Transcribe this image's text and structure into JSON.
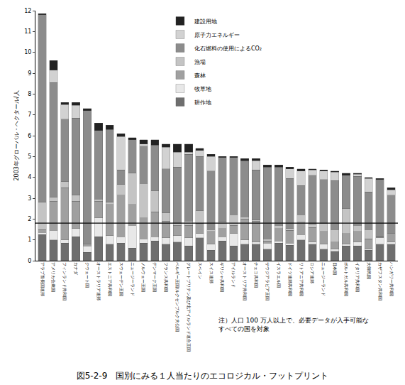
{
  "chart_data": {
    "type": "bar",
    "stacked": true,
    "title": "図5-2-9　国別にみる１人当たりのエコロジカル・フットプリント",
    "y_label": "2003年グローバル・ヘクタール/人",
    "note": [
      "注）人口 100 万人以上で、必要データが入手可能な",
      "すべての国を対象"
    ],
    "reference_line": 1.8,
    "ylim": [
      0,
      12
    ],
    "yticks": [
      0,
      1,
      2,
      3,
      4,
      5,
      6,
      7,
      8,
      9,
      10,
      11,
      12
    ],
    "grid": false,
    "legend": "top",
    "categories": [
      "アラブ首長国連邦",
      "アメリカ合衆国",
      "フィンランド共和国",
      "カナダ",
      "クウェート国",
      "オーストラリア連邦",
      "エストニア共和国",
      "スウェーデン王国",
      "ニュージーランド",
      "ノルウェー王国",
      "デンマーク王国",
      "フランス共和国",
      "ベルギー王国/ルクセンブルク大公国",
      "グレートブリテン及び北アイルランド連合王国",
      "スペイン",
      "スイス連邦",
      "ギリシャ共和国",
      "アイルランド",
      "オーストリア共和国",
      "チェコ共和国",
      "サウジアラビア王国",
      "イスラエル国",
      "ドイツ連邦共和国",
      "リトアニア共和国",
      "ロシア連邦",
      "ニュージーランド",
      "日本国",
      "ポルトガル共和国",
      "イタリア共和国",
      "大韓民国",
      "カザフスタン共和国",
      "ハンガリー共和国"
    ],
    "series": [
      {
        "name": "耕作地",
        "color": "#6e6e6e",
        "values": [
          1.25,
          1.0,
          0.85,
          1.15,
          0.4,
          1.15,
          0.8,
          0.85,
          0.6,
          0.85,
          0.95,
          0.8,
          0.9,
          0.7,
          1.1,
          0.5,
          0.95,
          0.7,
          0.8,
          0.8,
          0.55,
          0.85,
          0.75,
          1.0,
          0.8,
          0.55,
          0.45,
          0.7,
          0.7,
          0.5,
          0.8,
          0.8
        ]
      },
      {
        "name": "牧草地",
        "color": "#e8e8e8",
        "values": [
          0.1,
          0.45,
          0.15,
          0.4,
          0.3,
          0.9,
          0.4,
          0.3,
          1.1,
          0.2,
          0.2,
          0.3,
          0.3,
          0.4,
          0.2,
          0.3,
          0.2,
          0.6,
          0.2,
          0.1,
          0.3,
          0.1,
          0.1,
          0.25,
          0.1,
          0.25,
          0.1,
          0.1,
          0.2,
          0.05,
          0.3,
          0.1
        ]
      },
      {
        "name": "森林",
        "color": "#a0a0a0",
        "values": [
          0.15,
          1.4,
          2.5,
          1.3,
          0.1,
          0.8,
          1.5,
          2.0,
          1.0,
          1.0,
          1.2,
          0.8,
          0.5,
          0.6,
          0.5,
          0.6,
          0.4,
          0.4,
          1.0,
          1.0,
          0.1,
          0.6,
          0.6,
          0.6,
          0.7,
          0.6,
          0.35,
          0.5,
          0.5,
          0.5,
          0.05,
          0.4
        ]
      },
      {
        "name": "漁場",
        "color": "#c4c4c4",
        "values": [
          1.3,
          0.2,
          0.3,
          0.3,
          0.0,
          0.1,
          0.1,
          0.5,
          1.5,
          1.65,
          1.0,
          0.4,
          0.1,
          0.2,
          0.6,
          0.1,
          0.3,
          0.5,
          0.1,
          0.05,
          0.1,
          0.15,
          0.1,
          0.35,
          0.15,
          0.4,
          0.6,
          1.2,
          0.3,
          0.45,
          0.0,
          0.0
        ]
      },
      {
        "name": "化石燃料の使用によるCO₂",
        "color": "#8c8c8c",
        "values": [
          9.0,
          5.5,
          3.0,
          3.7,
          6.4,
          3.3,
          3.5,
          0.7,
          1.6,
          1.8,
          2.2,
          2.1,
          2.7,
          3.2,
          2.6,
          2.8,
          3.1,
          2.75,
          2.7,
          2.4,
          3.45,
          2.8,
          2.4,
          1.4,
          2.35,
          2.1,
          2.35,
          1.6,
          2.35,
          1.8,
          2.75,
          1.85
        ]
      },
      {
        "name": "原子力エネルギー",
        "color": "#d2d2d2",
        "values": [
          0.0,
          0.6,
          0.7,
          0.6,
          0.0,
          0.0,
          0.0,
          1.6,
          0.0,
          0.1,
          0.0,
          1.05,
          0.7,
          0.1,
          0.3,
          0.7,
          0.0,
          0.0,
          0.0,
          0.45,
          0.0,
          0.0,
          0.45,
          0.7,
          0.25,
          0.4,
          0.4,
          0.0,
          0.1,
          0.65,
          0.0,
          0.25
        ]
      },
      {
        "name": "建設用地",
        "color": "#222222",
        "values": [
          0.05,
          0.45,
          0.1,
          0.15,
          0.1,
          0.35,
          0.2,
          0.15,
          0.1,
          0.2,
          0.25,
          0.15,
          0.4,
          0.4,
          0.1,
          0.1,
          0.05,
          0.05,
          0.1,
          0.1,
          0.1,
          0.1,
          0.1,
          0.1,
          0.05,
          0.05,
          0.05,
          0.1,
          0.05,
          0.05,
          0.05,
          0.1
        ]
      }
    ]
  }
}
